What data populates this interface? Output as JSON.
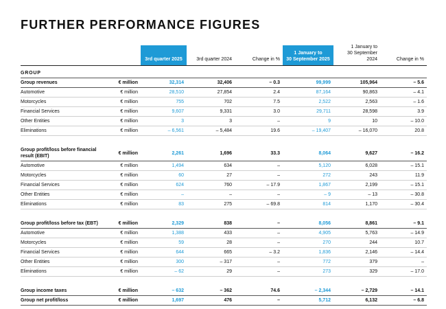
{
  "title": "FURTHER PERFORMANCE FIGURES",
  "table": {
    "header": [
      "3rd quarter 2025",
      "3rd quarter 2024",
      "Change in %",
      [
        "1 January to",
        "30 September 2025"
      ],
      [
        "1 January to",
        "30 September 2024"
      ],
      "Change in %"
    ],
    "section": "GROUP",
    "groups": [
      {
        "totals": [
          {
            "label": "Group revenues",
            "unit": "€ million",
            "values": [
              "32,314",
              "32,406",
              "– 0.3",
              "99,999",
              "105,964",
              "– 5.6"
            ]
          }
        ],
        "items": [
          {
            "label": "Automotive",
            "unit": "€ million",
            "values": [
              "28,510",
              "27,854",
              "2.4",
              "87,164",
              "90,863",
              "– 4.1"
            ]
          },
          {
            "label": "Motorcycles",
            "unit": "€ million",
            "values": [
              "755",
              "702",
              "7.5",
              "2,522",
              "2,563",
              "– 1.6"
            ]
          },
          {
            "label": "Financial Services",
            "unit": "€ million",
            "values": [
              "9,607",
              "9,331",
              "3.0",
              "29,711",
              "28,598",
              "3.9"
            ]
          },
          {
            "label": "Other Entities",
            "unit": "€ million",
            "values": [
              "3",
              "3",
              "–",
              "9",
              "10",
              "– 10.0"
            ]
          },
          {
            "label": "Eliminations",
            "unit": "€ million",
            "values": [
              "– 6,561",
              "– 5,484",
              "19.6",
              "– 19,407",
              "– 16,070",
              "20.8"
            ]
          }
        ]
      },
      {
        "totals": [
          {
            "label": "Group profit/loss before financial result (EBIT)",
            "unit": "€ million",
            "values": [
              "2,261",
              "1,696",
              "33.3",
              "8,064",
              "9,627",
              "– 16.2"
            ]
          }
        ],
        "items": [
          {
            "label": "Automotive",
            "unit": "€ million",
            "values": [
              "1,494",
              "634",
              "–",
              "5,120",
              "6,028",
              "– 15.1"
            ]
          },
          {
            "label": "Motorcycles",
            "unit": "€ million",
            "values": [
              "60",
              "27",
              "–",
              "272",
              "243",
              "11.9"
            ]
          },
          {
            "label": "Financial Services",
            "unit": "€ million",
            "values": [
              "624",
              "760",
              "– 17.9",
              "1,867",
              "2,199",
              "– 15.1"
            ]
          },
          {
            "label": "Other Entities",
            "unit": "€ million",
            "values": [
              "–",
              "–",
              "–",
              "– 9",
              "– 13",
              "– 30.8"
            ]
          },
          {
            "label": "Eliminations",
            "unit": "€ million",
            "values": [
              "83",
              "275",
              "– 69.8",
              "814",
              "1,170",
              "– 30.4"
            ]
          }
        ]
      },
      {
        "totals": [
          {
            "label": "Group profit/loss before tax (EBT)",
            "unit": "€ million",
            "values": [
              "2,329",
              "838",
              "–",
              "8,056",
              "8,861",
              "– 9.1"
            ]
          }
        ],
        "items": [
          {
            "label": "Automotive",
            "unit": "€ million",
            "values": [
              "1,388",
              "433",
              "–",
              "4,905",
              "5,763",
              "– 14.9"
            ]
          },
          {
            "label": "Motorcycles",
            "unit": "€ million",
            "values": [
              "59",
              "28",
              "–",
              "270",
              "244",
              "10.7"
            ]
          },
          {
            "label": "Financial Services",
            "unit": "€ million",
            "values": [
              "644",
              "665",
              "– 3.2",
              "1,836",
              "2,146",
              "– 14.4"
            ]
          },
          {
            "label": "Other Entities",
            "unit": "€ million",
            "values": [
              "300",
              "– 317",
              "–",
              "772",
              "379",
              "–"
            ]
          },
          {
            "label": "Eliminations",
            "unit": "€ million",
            "values": [
              "– 62",
              "29",
              "–",
              "273",
              "329",
              "– 17.0"
            ]
          }
        ]
      },
      {
        "totals": [
          {
            "label": "Group income taxes",
            "unit": "€ million",
            "values": [
              "– 632",
              "– 362",
              "74.6",
              "– 2,344",
              "– 2,729",
              "– 14.1"
            ]
          },
          {
            "label": "Group net profit/loss",
            "unit": "€ million",
            "values": [
              "1,697",
              "476",
              "–",
              "5,712",
              "6,132",
              "– 6.8"
            ]
          }
        ],
        "items": []
      }
    ]
  }
}
